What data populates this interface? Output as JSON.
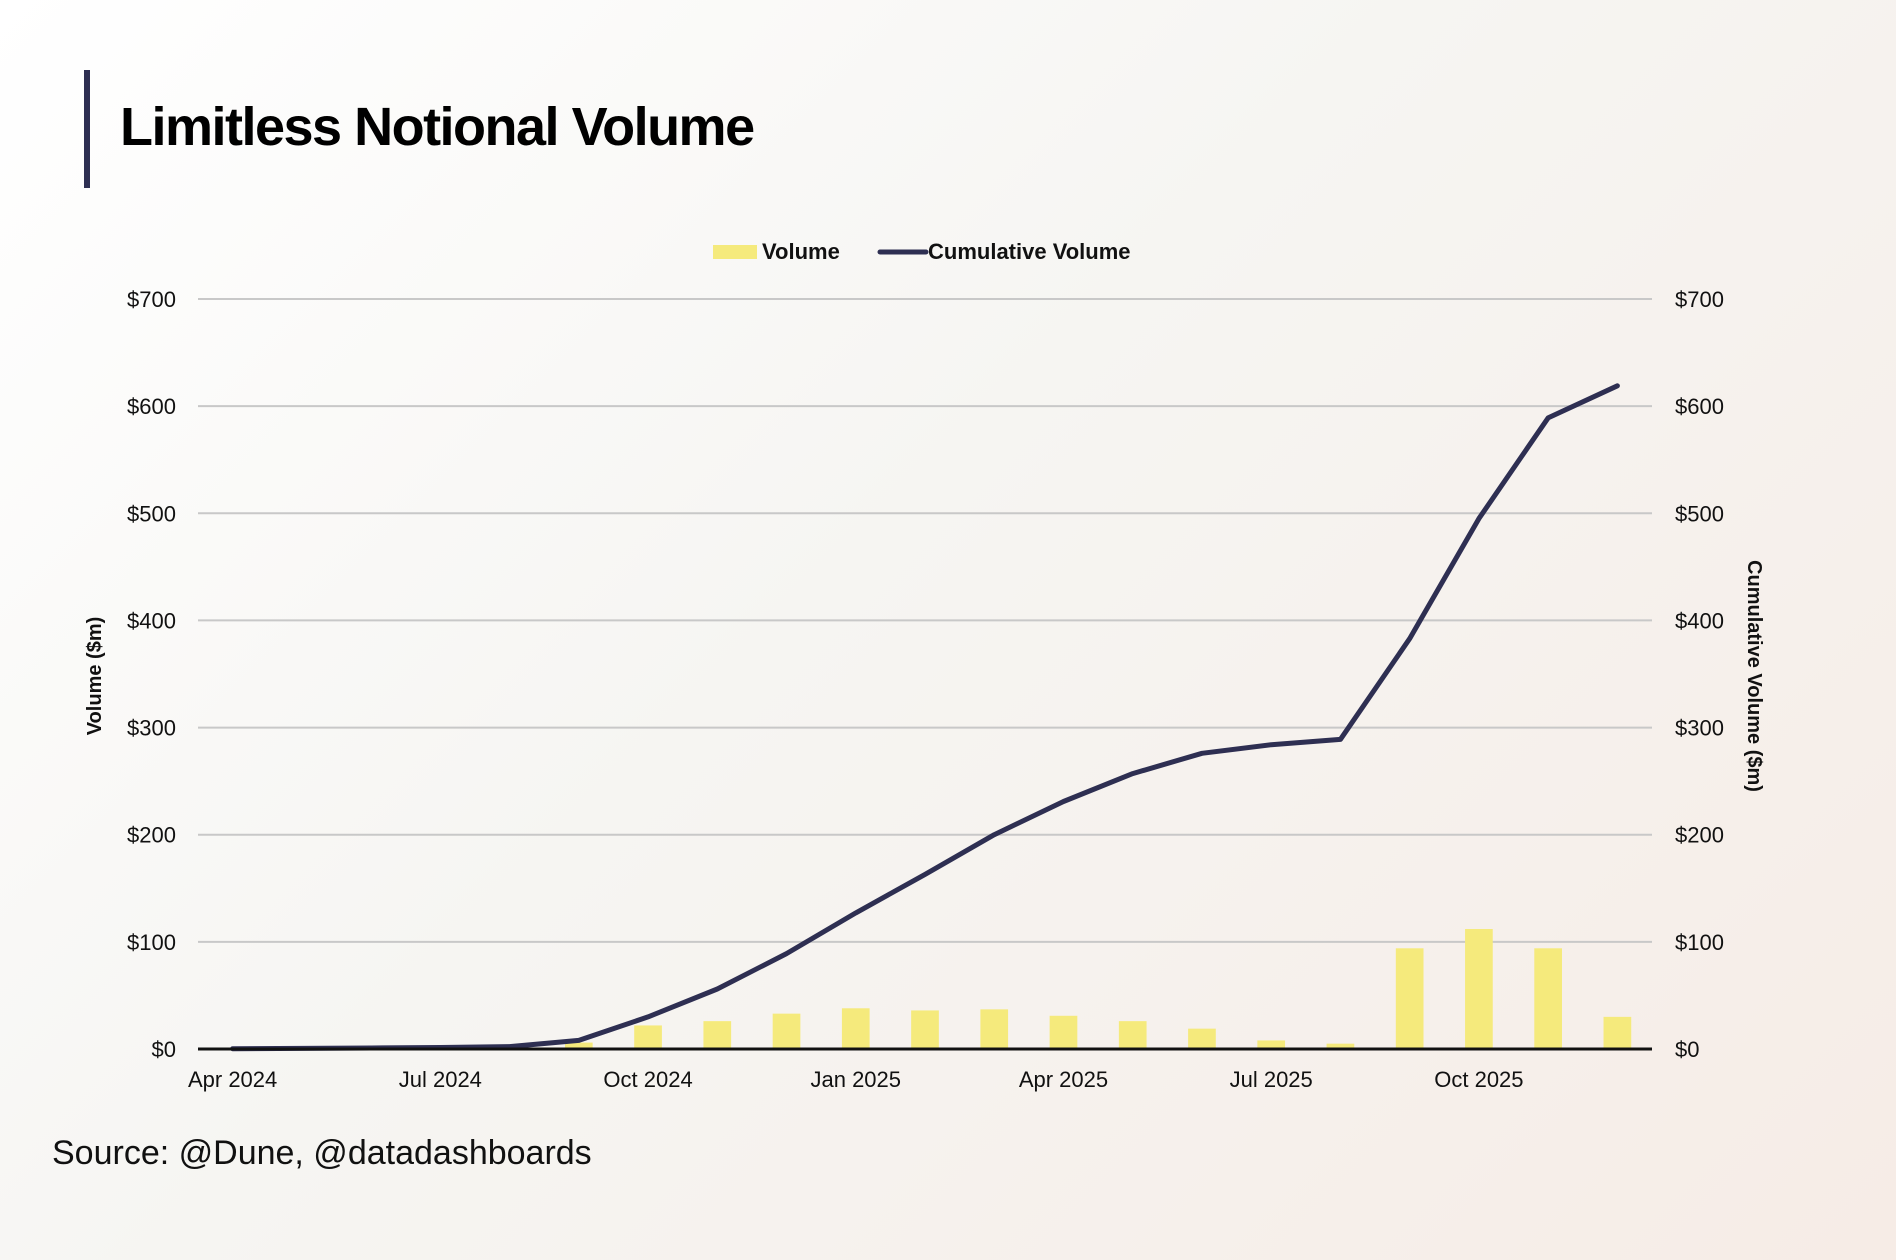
{
  "title": "Limitless Notional Volume",
  "source": "Source: @Dune, @datadashboards",
  "colors": {
    "bar": "#f5ea7c",
    "line": "#2e2f52",
    "grid": "#c8c8c8",
    "axis": "#111111"
  },
  "chart_data": {
    "type": "bar",
    "categories": [
      "Apr 2024",
      "May 2024",
      "Jun 2024",
      "Jul 2024",
      "Aug 2024",
      "Sep 2024",
      "Oct 2024",
      "Nov 2024",
      "Dec 2024",
      "Jan 2025",
      "Feb 2025",
      "Mar 2025",
      "Apr 2025",
      "May 2025",
      "Jun 2025",
      "Jul 2025",
      "Aug 2025",
      "Sep 2025",
      "Oct 2025",
      "Nov 2025",
      "Dec 2025"
    ],
    "x_tick_labels": [
      "Apr 2024",
      "Jul 2024",
      "Oct 2024",
      "Jan 2025",
      "Apr 2025",
      "Jul 2025",
      "Oct 2025"
    ],
    "series": [
      {
        "name": "Volume",
        "type": "bar",
        "axis": "left",
        "values": [
          0.3,
          0.3,
          0.3,
          0.5,
          0.8,
          6,
          22,
          26,
          33,
          38,
          36,
          37,
          31,
          26,
          19,
          8,
          5,
          94,
          112,
          94,
          30
        ]
      },
      {
        "name": "Cumulative Volume",
        "type": "line",
        "axis": "right",
        "values": [
          0.3,
          0.6,
          0.9,
          1.4,
          2.2,
          8,
          30,
          56,
          89,
          127,
          163,
          200,
          231,
          257,
          276,
          284,
          289,
          383,
          495,
          589,
          619
        ]
      }
    ],
    "ylabel": "Volume ($m)",
    "y2label": "Cumulative Volume ($m)",
    "ylim": [
      0,
      700
    ],
    "y2lim": [
      0,
      700
    ],
    "yticks": [
      "$0",
      "$100",
      "$200",
      "$300",
      "$400",
      "$500",
      "$600",
      "$700"
    ],
    "y2ticks": [
      "$0",
      "$100",
      "$200",
      "$300",
      "$400",
      "$500",
      "$600",
      "$700"
    ],
    "grid": true,
    "legend": "top-center"
  }
}
